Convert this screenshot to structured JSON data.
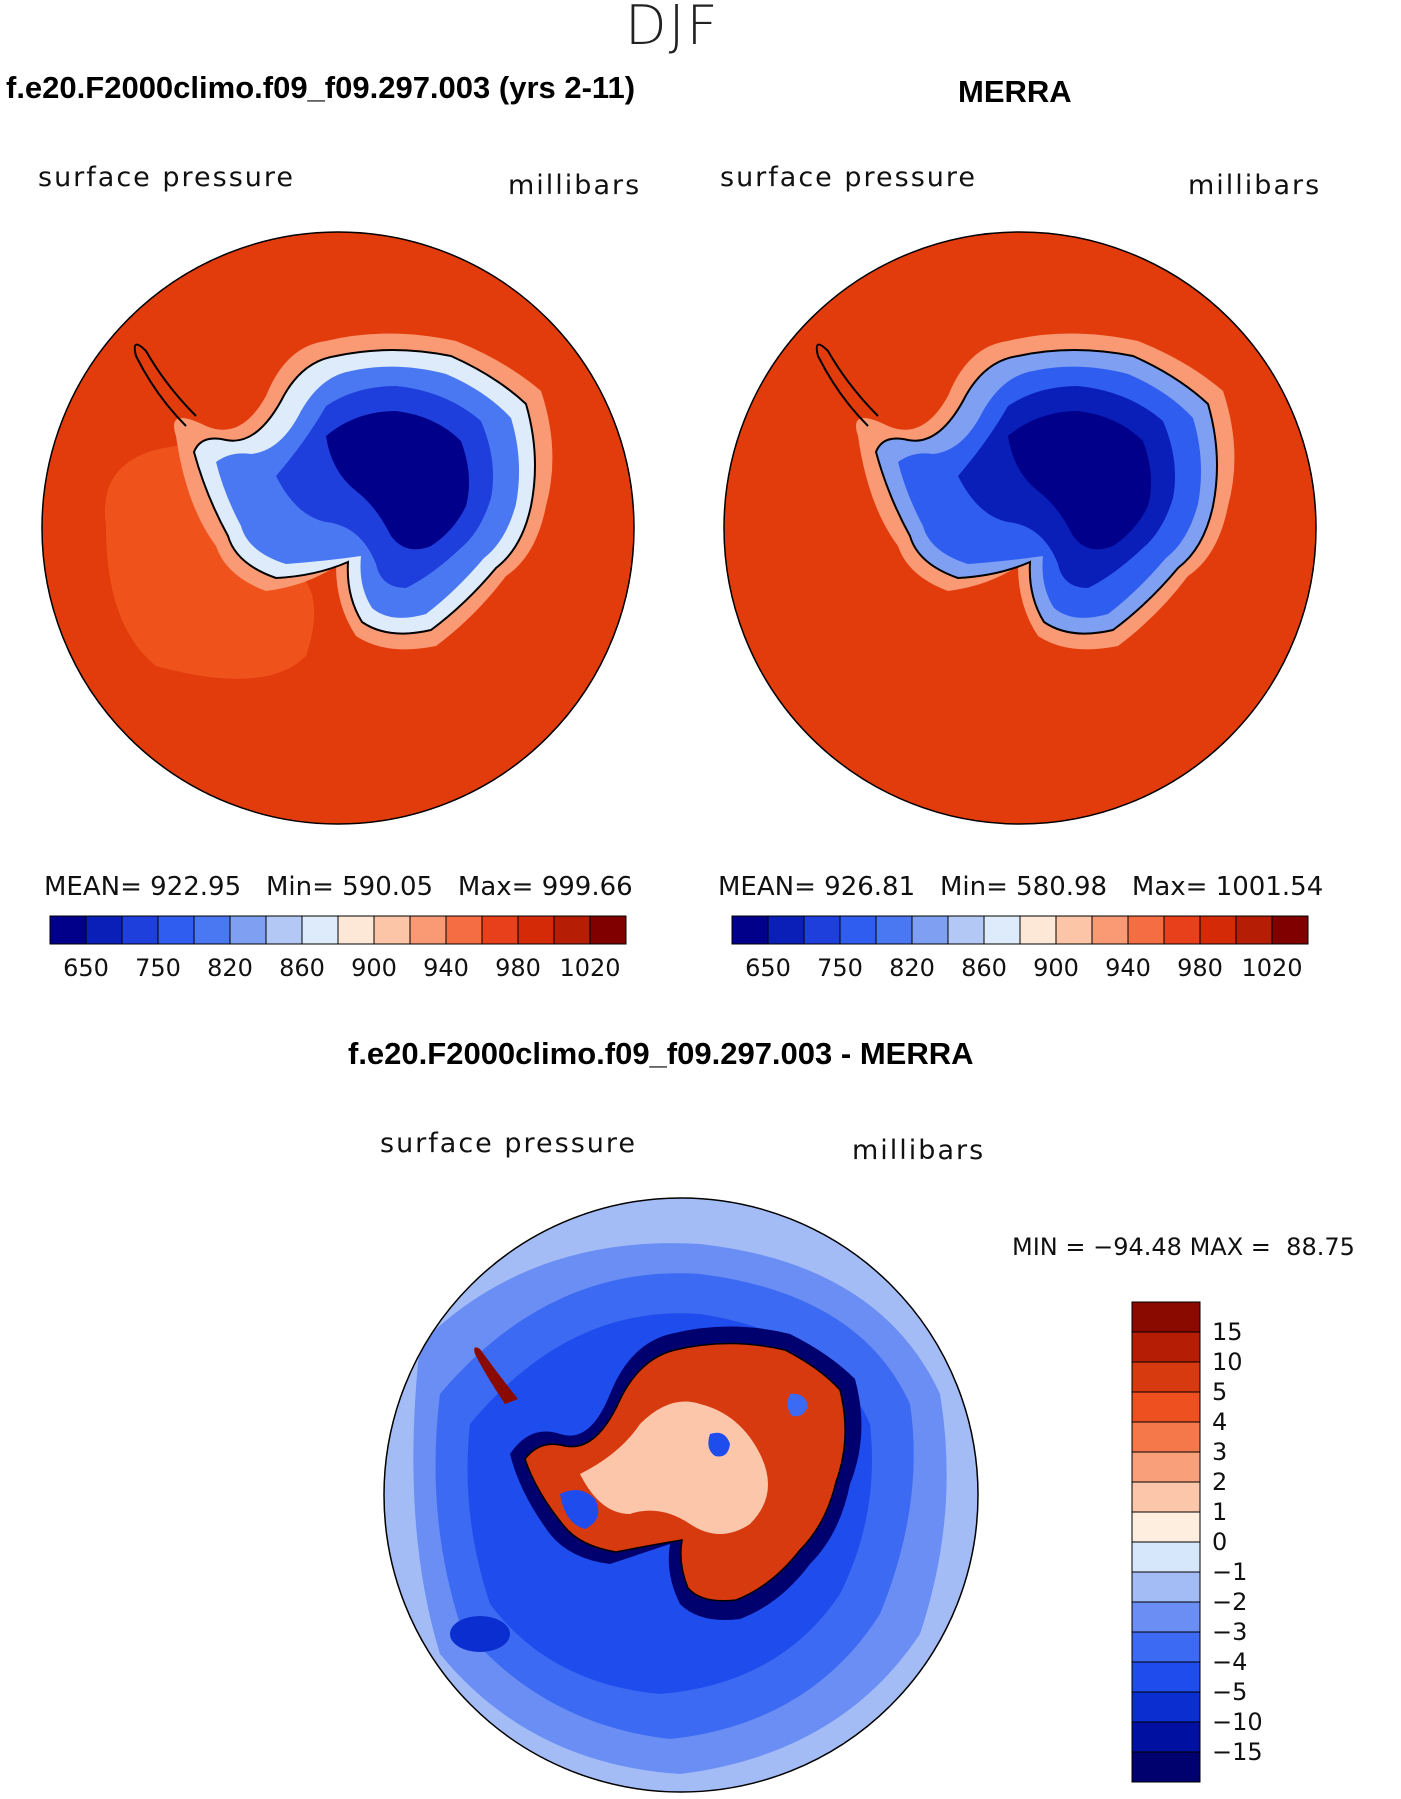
{
  "figure": {
    "season": "DJF",
    "panels": {
      "model": {
        "title": "f.e20.F2000climo.f09_f09.297.003 (yrs 2-11)",
        "variable": "surface pressure",
        "units": "millibars",
        "mean_label": "MEAN=",
        "mean": "922.95",
        "min_label": "Min=",
        "min": "590.05",
        "max_label": "Max=",
        "max": "999.66"
      },
      "obs": {
        "title": "MERRA",
        "variable": "surface pressure",
        "units": "millibars",
        "mean_label": "MEAN=",
        "mean": "926.81",
        "min_label": "Min=",
        "min": "580.98",
        "max_label": "Max=",
        "max": "1001.54"
      },
      "diff": {
        "title": "f.e20.F2000climo.f09_f09.297.003 - MERRA",
        "variable": "surface pressure",
        "units": "millibars",
        "min_label": "MIN =",
        "min": "−94.48",
        "max_label": "MAX =",
        "max": "88.75"
      }
    }
  },
  "colors": {
    "abs_scale": [
      "#00008b",
      "#0a1fb8",
      "#1f3fdc",
      "#2f5df0",
      "#4a78f2",
      "#7e9ff2",
      "#b4c8f5",
      "#deebfa",
      "#fde8d8",
      "#fcc5a8",
      "#f99a74",
      "#f56d42",
      "#e8401a",
      "#d42a08",
      "#b51e04",
      "#800000"
    ],
    "diff_scale": [
      "#00006e",
      "#0010a0",
      "#0a2ed0",
      "#1f4ded",
      "#3d6af2",
      "#6a8ef4",
      "#a4bcf6",
      "#d6e6fb",
      "#fdeee0",
      "#fcc6aa",
      "#f9a07a",
      "#f5784a",
      "#ee5020",
      "#d83a10",
      "#b51e04",
      "#8b0a00"
    ],
    "ocean_abs": "#e23c0c",
    "ocean_abs_warm": "#f0521c"
  },
  "chart_data": [
    {
      "type": "heatmap",
      "title": "f.e20.F2000climo.f09_f09.297.003 (yrs 2-11)",
      "variable": "surface pressure",
      "units": "millibars",
      "projection": "south polar stereographic",
      "stats": {
        "mean": 922.95,
        "min": 590.05,
        "max": 999.66
      },
      "colorbar_levels": [
        650,
        700,
        750,
        800,
        820,
        840,
        860,
        880,
        900,
        920,
        940,
        960,
        980,
        1000,
        1020
      ],
      "colorbar_tick_labels": [
        "650",
        "750",
        "820",
        "860",
        "900",
        "940",
        "980",
        "1020"
      ]
    },
    {
      "type": "heatmap",
      "title": "MERRA",
      "variable": "surface pressure",
      "units": "millibars",
      "projection": "south polar stereographic",
      "stats": {
        "mean": 926.81,
        "min": 580.98,
        "max": 1001.54
      },
      "colorbar_levels": [
        650,
        700,
        750,
        800,
        820,
        840,
        860,
        880,
        900,
        920,
        940,
        960,
        980,
        1000,
        1020
      ],
      "colorbar_tick_labels": [
        "650",
        "750",
        "820",
        "860",
        "900",
        "940",
        "980",
        "1020"
      ]
    },
    {
      "type": "heatmap",
      "title": "f.e20.F2000climo.f09_f09.297.003 - MERRA",
      "variable": "surface pressure",
      "units": "millibars",
      "projection": "south polar stereographic",
      "stats": {
        "min": -94.48,
        "max": 88.75
      },
      "colorbar_levels": [
        -15,
        -10,
        -5,
        -4,
        -3,
        -2,
        -1,
        0,
        1,
        2,
        3,
        4,
        5,
        10,
        15
      ],
      "colorbar_tick_labels": [
        "15",
        "10",
        "5",
        "4",
        "3",
        "2",
        "1",
        "0",
        "−1",
        "−2",
        "−3",
        "−4",
        "−5",
        "−10",
        "−15"
      ]
    }
  ]
}
